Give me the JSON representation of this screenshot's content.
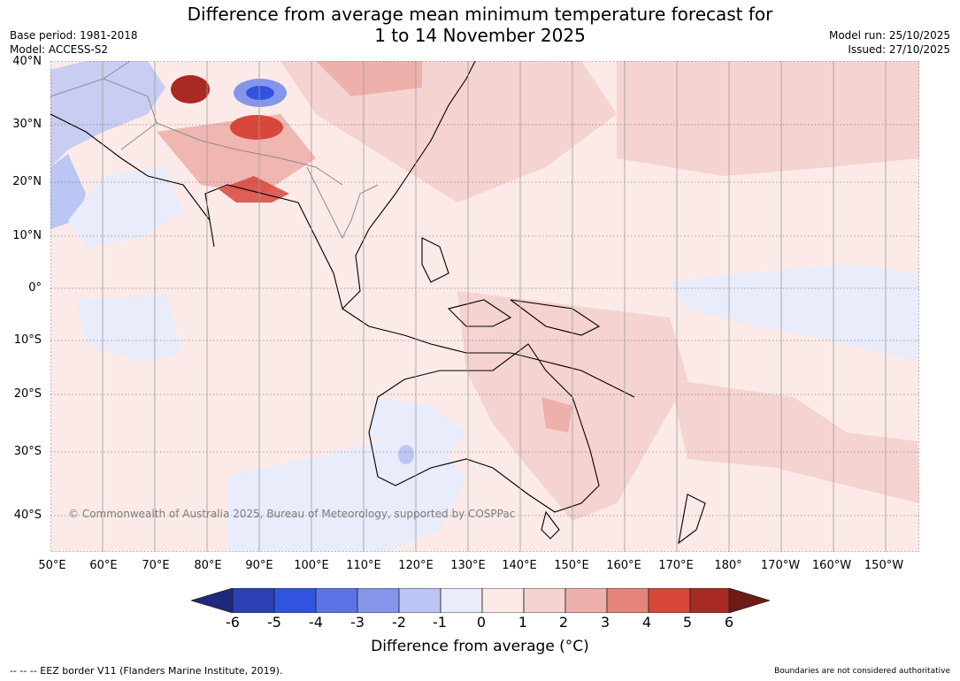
{
  "title_line1": "Difference from average mean minimum temperature forecast for",
  "title_line2": "1 to 14 November 2025",
  "base_period": "Base period: 1981-2018",
  "model": "Model: ACCESS-S2",
  "model_run": "Model run: 25/10/2025",
  "issued": "Issued: 27/10/2025",
  "lat_labels": [
    "40°N",
    "30°N",
    "20°N",
    "10°N",
    "0°",
    "10°S",
    "20°S",
    "30°S",
    "40°S"
  ],
  "lon_labels": [
    "50°E",
    "60°E",
    "70°E",
    "80°E",
    "90°E",
    "100°E",
    "110°E",
    "120°E",
    "130°E",
    "140°E",
    "150°E",
    "160°E",
    "170°E",
    "180°",
    "170°W",
    "160°W",
    "150°W"
  ],
  "copyright": "© Commonwealth of Australia 2025, Bureau of Meteorology, supported by COSPPac",
  "colorbar": {
    "ticks": [
      "-6",
      "-5",
      "-4",
      "-3",
      "-2",
      "-1",
      "0",
      "1",
      "2",
      "3",
      "4",
      "5",
      "6"
    ],
    "colors": [
      "#1e2a7e",
      "#2a40b4",
      "#3154e0",
      "#5a74e6",
      "#8596ea",
      "#bcc6f4",
      "#e8ecfb",
      "#fbeae7",
      "#f5d3d0",
      "#eeb0ab",
      "#e6837a",
      "#d8473b",
      "#a92a24",
      "#6e1a16"
    ],
    "label": "Difference from average (°C)"
  },
  "footer_left": "--  --  -- EEZ border V11 (Flanders Marine Institute, 2019).",
  "footer_right": "Boundaries are not considered authoritative"
}
